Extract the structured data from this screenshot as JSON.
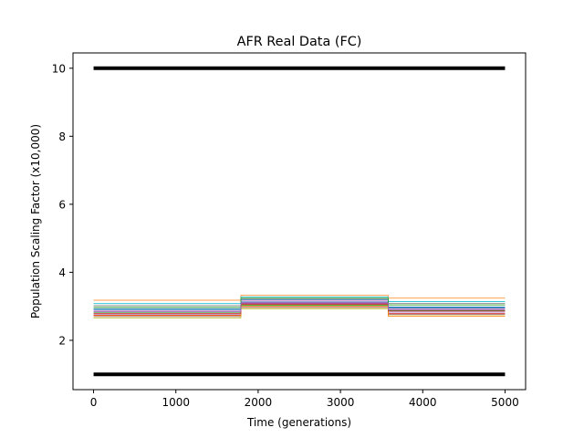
{
  "chart_data": {
    "type": "line",
    "title": "AFR Real Data (FC)",
    "xlabel": "Time (generations)",
    "ylabel": "Population Scaling Factor (x10,000)",
    "xlim": [
      -250,
      5250
    ],
    "ylim": [
      0.55,
      10.45
    ],
    "xticks": [
      0,
      1000,
      2000,
      3000,
      4000,
      5000
    ],
    "yticks": [
      2,
      4,
      6,
      8,
      10
    ],
    "grid": false,
    "breakpoints": [
      0,
      1790,
      3580,
      5000
    ],
    "bounds": [
      {
        "name": "upper",
        "color": "#000000",
        "values": [
          10,
          10,
          10
        ]
      },
      {
        "name": "lower",
        "color": "#000000",
        "values": [
          1,
          1,
          1
        ]
      }
    ],
    "series": [
      {
        "color": "#1f77b4",
        "values": [
          2.93,
          3.13,
          2.98
        ]
      },
      {
        "color": "#ff7f0e",
        "values": [
          3.18,
          3.32,
          3.24
        ]
      },
      {
        "color": "#2ca02c",
        "values": [
          2.81,
          3.03,
          2.88
        ]
      },
      {
        "color": "#d62728",
        "values": [
          2.74,
          3.08,
          2.79
        ]
      },
      {
        "color": "#9467bd",
        "values": [
          2.77,
          3.11,
          2.83
        ]
      },
      {
        "color": "#8c564b",
        "values": [
          2.7,
          2.97,
          2.76
        ]
      },
      {
        "color": "#e377c2",
        "values": [
          2.86,
          3.16,
          2.93
        ]
      },
      {
        "color": "#7f7f7f",
        "values": [
          3.02,
          3.22,
          3.08
        ]
      },
      {
        "color": "#bcbd22",
        "values": [
          2.66,
          2.93,
          2.72
        ]
      },
      {
        "color": "#17becf",
        "values": [
          3.08,
          3.27,
          3.14
        ]
      },
      {
        "color": "#1f77b4",
        "values": [
          2.89,
          3.19,
          2.95
        ]
      },
      {
        "color": "#ff7f0e",
        "values": [
          2.73,
          3.0,
          2.71
        ]
      },
      {
        "color": "#2ca02c",
        "values": [
          2.97,
          3.24,
          3.04
        ]
      },
      {
        "color": "#d62728",
        "values": [
          2.79,
          3.06,
          2.86
        ]
      },
      {
        "color": "#9467bd",
        "values": [
          2.84,
          3.09,
          2.9
        ]
      }
    ]
  }
}
